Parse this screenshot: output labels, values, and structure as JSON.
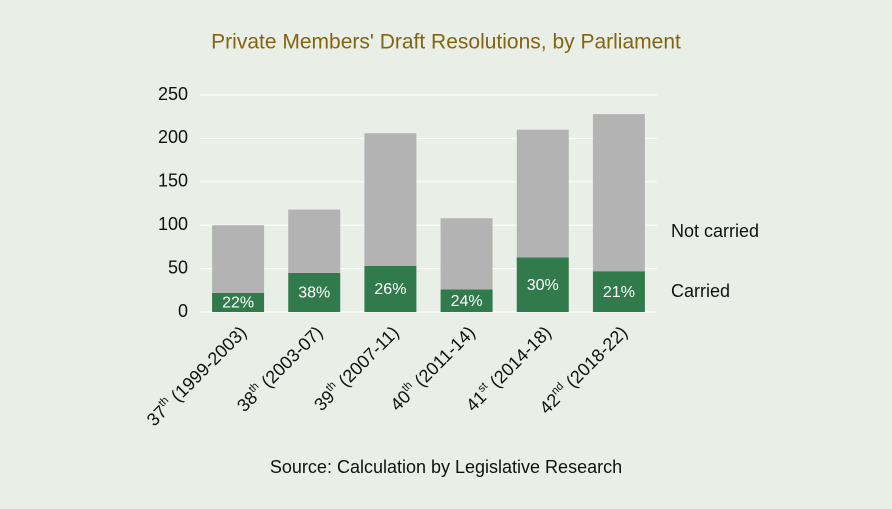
{
  "chart_data": {
    "type": "stacked-bar",
    "title": "Private Members' Draft Resolutions, by Parliament",
    "source": "Source: Calculation by Legislative Research",
    "categories": [
      "37th (1999-2003)",
      "38th (2003-07)",
      "39th (2007-11)",
      "40th (2011-14)",
      "41st (2014-18)",
      "42nd (2018-22)"
    ],
    "series": [
      {
        "name": "Carried",
        "color": "#317a4b",
        "values": [
          22,
          45,
          53,
          26,
          63,
          47
        ]
      },
      {
        "name": "Not carried",
        "color": "#b3b3b3",
        "values": [
          78,
          73,
          153,
          82,
          147,
          181
        ]
      }
    ],
    "share_labels": [
      "22%",
      "38%",
      "26%",
      "24%",
      "30%",
      "21%"
    ],
    "ylim": [
      0,
      250
    ],
    "yticks": [
      0,
      50,
      100,
      150,
      200,
      250
    ],
    "grid": true
  }
}
